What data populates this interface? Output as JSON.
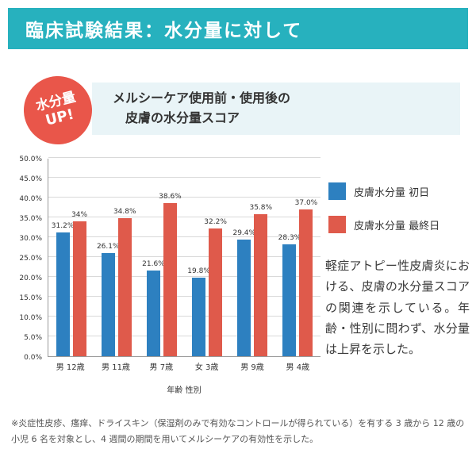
{
  "banner": {
    "title": "臨床試験結果：水分量に対して"
  },
  "badge": {
    "line1": "水分量",
    "line2": "UP!"
  },
  "heading": {
    "line1": "メルシーケア使用前・使用後の",
    "line2": "皮膚の水分量スコア"
  },
  "chart_data": {
    "type": "bar",
    "title": "メルシーケア使用前・使用後の皮膚の水分量スコア",
    "categories": [
      "男 12歳",
      "男 11歳",
      "男 7歳",
      "女 3歳",
      "男 9歳",
      "男 4歳"
    ],
    "series": [
      {
        "name": "皮膚水分量 初日",
        "color": "#2d80c0",
        "values": [
          31.2,
          26.1,
          21.6,
          19.8,
          29.4,
          28.3
        ]
      },
      {
        "name": "皮膚水分量 最終日",
        "color": "#df5a4b",
        "values": [
          34.0,
          34.8,
          38.6,
          32.2,
          35.8,
          37.0
        ]
      }
    ],
    "data_labels": [
      [
        "31.2%",
        "26.1%",
        "21.6%",
        "19.8%",
        "29.4%",
        "28.3%"
      ],
      [
        "34%",
        "34.8%",
        "38.6%",
        "32.2%",
        "35.8%",
        "37.0%"
      ]
    ],
    "xlabel": "年齢 性別",
    "ylabel": "",
    "ylim": [
      0,
      50
    ],
    "ytick_step": 5,
    "ytick_labels": [
      "0.0%",
      "5.0%",
      "10.0%",
      "15.0%",
      "20.0%",
      "25.0%",
      "30.0%",
      "35.0%",
      "40.0%",
      "45.0%",
      "50.0%"
    ],
    "grid": true,
    "legend_position": "right"
  },
  "description": "軽症アトピー性皮膚炎における、皮膚の水分量スコアの関連を示している。年齢・性別に問わず、水分量は上昇を示した。",
  "footnote": "※炎症性皮疹、瘙痒、ドライスキン（保湿剤のみで有効なコントロールが得られている）を有する 3 歳から 12 歳の小児 6 名を対象とし、4 週間の期間を用いてメルシーケアの有効性を示した。",
  "colors": {
    "banner_teal": "#27b1be",
    "badge_red": "#e9564a",
    "heading_bg": "#e9f4f7",
    "bar_blue": "#2d80c0",
    "bar_red": "#df5a4b"
  }
}
